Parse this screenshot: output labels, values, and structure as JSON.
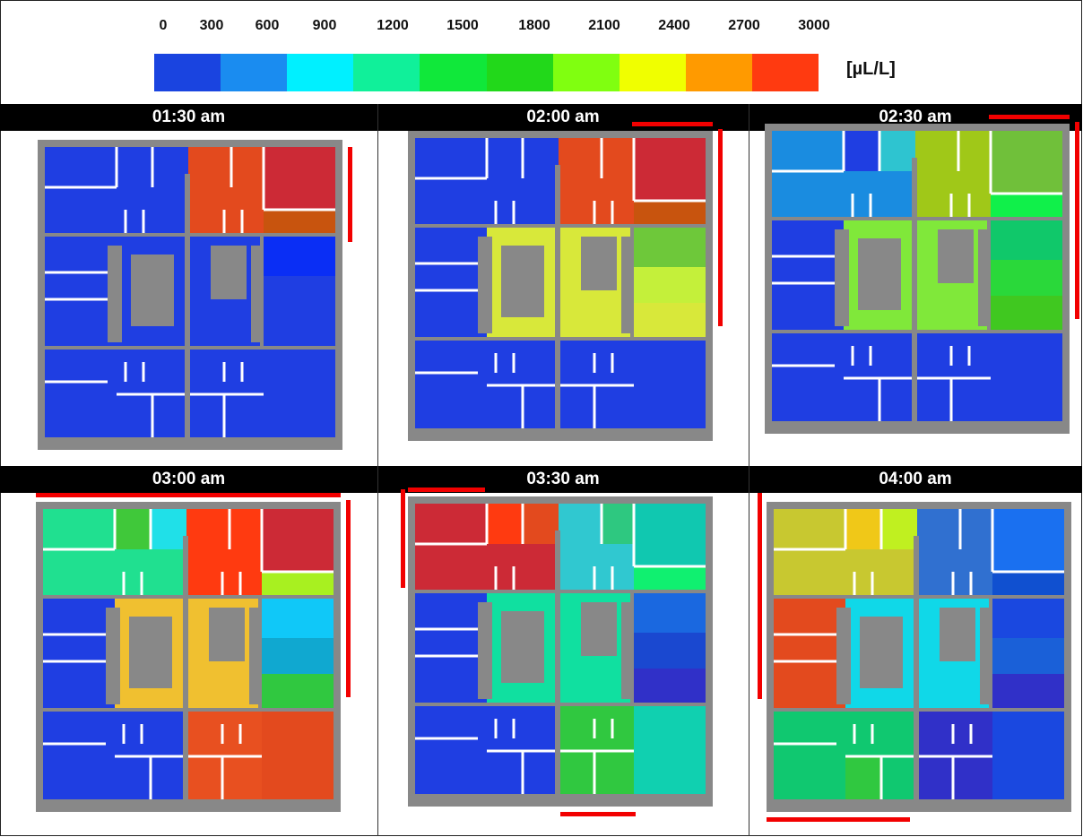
{
  "colorbar": {
    "ticks": [
      "0",
      "300",
      "600",
      "900",
      "1200",
      "1500",
      "1800",
      "2100",
      "2400",
      "2700",
      "3000"
    ],
    "colors": [
      "#1a44e0",
      "#1a8cf0",
      "#00f0ff",
      "#10f09a",
      "#10e83a",
      "#22d81a",
      "#80ff10",
      "#f0ff00",
      "#ff9a00",
      "#ff3a10"
    ],
    "unit": "[µL/L]"
  },
  "panels": [
    {
      "time": "01:30 am",
      "zones": {
        "tl": [
          "#1f3ee2",
          "#1f3ee2",
          "#1f3ee2"
        ],
        "tr": [
          "#e34a1e",
          "#e34a1e",
          "#cc2a36",
          "#c8540e"
        ],
        "midL": "#1f3ee2",
        "center": "#1f3ee2",
        "midR": [
          "#0a2ef5",
          "#1f3ee2",
          "#1f3ee2"
        ],
        "bot": [
          "#1f3ee2",
          "#1f3ee2",
          "#1f3ee2",
          "#1f3ee2"
        ]
      },
      "red": [
        "right-top"
      ]
    },
    {
      "time": "02:00 am",
      "zones": {
        "tl": [
          "#1f3ee2",
          "#1f3ee2",
          "#1f3ee2"
        ],
        "tr": [
          "#e34a1e",
          "#e34a1e",
          "#cc2a36",
          "#c8540e"
        ],
        "midL": "#1f3ee2",
        "center": "#d8e83a",
        "midR": [
          "#6ec83a",
          "#c4f03a",
          "#d8e83a"
        ],
        "bot": [
          "#1f3ee2",
          "#1f3ee2",
          "#1f3ee2",
          "#1f3ee2"
        ]
      },
      "red": [
        "top-right",
        "right-full"
      ]
    },
    {
      "time": "02:30 am",
      "zones": {
        "tl": [
          "#1a8ce0",
          "#1f3ee2",
          "#2ec4d0"
        ],
        "tr": [
          "#a0c818",
          "#a0c818",
          "#70c03a",
          "#10f04a"
        ],
        "midL": "#1f3ee2",
        "center": "#80e83a",
        "midR": [
          "#10c86a",
          "#2ad83a",
          "#40c820"
        ],
        "bot": [
          "#1f3ee2",
          "#1f3ee2",
          "#1f3ee2",
          "#1f3ee2"
        ]
      },
      "red": [
        "top-right",
        "right-full"
      ]
    },
    {
      "time": "03:00 am",
      "zones": {
        "tl": [
          "#20e090",
          "#40c83a",
          "#20e0e8"
        ],
        "tr": [
          "#ff3a10",
          "#ff3a10",
          "#cc2a36",
          "#a8f020"
        ],
        "midL": "#1f3ee2",
        "center": "#f0c030",
        "midR": [
          "#10c8f8",
          "#10a8d0",
          "#30c840"
        ],
        "bot": [
          "#1f3ee2",
          "#1f3ee2",
          "#e85020",
          "#e34a1e"
        ]
      },
      "red": [
        "top-full",
        "right-full"
      ]
    },
    {
      "time": "03:30 am",
      "zones": {
        "tl": [
          "#cc2a36",
          "#ff3a10",
          "#e34a1e"
        ],
        "tr": [
          "#30c8d0",
          "#2ec880",
          "#10c8b0",
          "#10f070"
        ],
        "midL": "#1f3ee2",
        "center": "#10e0a0",
        "midR": [
          "#1a68e0",
          "#1a48d0",
          "#3030c8"
        ],
        "bot": [
          "#1f3ee2",
          "#1f3ee2",
          "#30c840",
          "#10d0b0"
        ]
      },
      "red": [
        "top-left",
        "left-top",
        "bottom-mid"
      ]
    },
    {
      "time": "04:00 am",
      "zones": {
        "tl": [
          "#c8c830",
          "#f0c818",
          "#c0f020"
        ],
        "tr": [
          "#3070d0",
          "#3070d0",
          "#1a70f0",
          "#1050d0"
        ],
        "midL": "#e34a1e",
        "center": "#10d8e8",
        "midR": [
          "#1a48e0",
          "#1a60d8",
          "#3030c8"
        ],
        "bot": [
          "#10c870",
          "#30c840",
          "#3030c8",
          "#1a48e0"
        ]
      },
      "red": [
        "left-full",
        "bottom-left"
      ]
    }
  ]
}
